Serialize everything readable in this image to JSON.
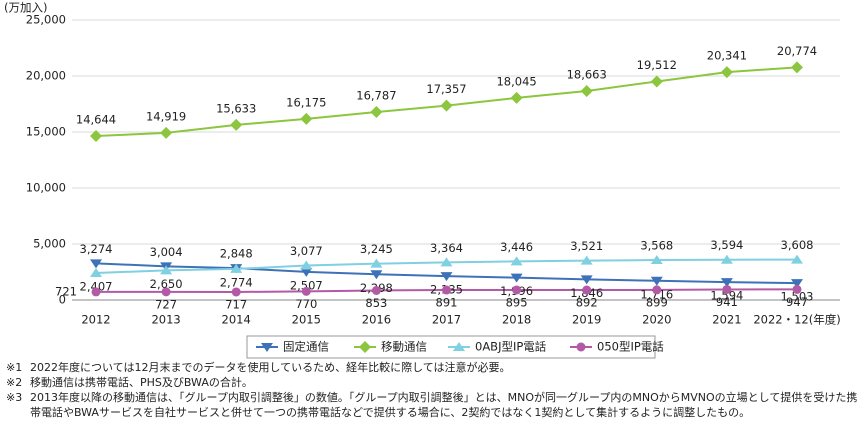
{
  "chart_data": {
    "type": "line",
    "y_unit": "(万加入)",
    "categories": [
      "2012",
      "2013",
      "2014",
      "2015",
      "2016",
      "2017",
      "2018",
      "2019",
      "2020",
      "2021",
      "2022・12(年度)"
    ],
    "ylim": [
      0,
      25000
    ],
    "yticks": [
      0,
      {
        "value": 5000,
        "label": "5,000"
      },
      {
        "value": 10000,
        "label": "10,000"
      },
      {
        "value": 15000,
        "label": "15,000"
      },
      {
        "value": 20000,
        "label": "20,000"
      },
      {
        "value": 25000,
        "label": "25,000"
      }
    ],
    "grid": true,
    "series": [
      {
        "name": "固定通信",
        "color": "#3d72b8",
        "marker": "triangle-down",
        "values": [
          3274,
          3004,
          2848,
          2507,
          2298,
          2135,
          1996,
          1846,
          1716,
          1594,
          1503
        ],
        "value_labels": [
          "3,274",
          "3,004",
          "2,848",
          "2,507",
          "2,298",
          "2,135",
          "1,996",
          "1,846",
          "1,716",
          "1,594",
          "1,503"
        ]
      },
      {
        "name": "移動通信",
        "color": "#8cc63f",
        "marker": "diamond",
        "values": [
          14644,
          14919,
          15633,
          16175,
          16787,
          17357,
          18045,
          18663,
          19512,
          20341,
          20774
        ],
        "value_labels": [
          "14,644",
          "14,919",
          "15,633",
          "16,175",
          "16,787",
          "17,357",
          "18,045",
          "18,663",
          "19,512",
          "20,341",
          "20,774"
        ]
      },
      {
        "name": "0ABJ型IP電話",
        "color": "#7fd0e0",
        "marker": "triangle-up",
        "values": [
          2407,
          2650,
          2774,
          3077,
          3245,
          3364,
          3446,
          3521,
          3568,
          3594,
          3608
        ],
        "value_labels": [
          "2,407",
          "2,650",
          "2,774",
          "3,077",
          "3,245",
          "3,364",
          "3,446",
          "3,521",
          "3,568",
          "3,594",
          "3,608"
        ]
      },
      {
        "name": "050型IP電話",
        "color": "#b35aa6",
        "marker": "circle",
        "values": [
          721,
          727,
          717,
          770,
          853,
          891,
          895,
          892,
          899,
          941,
          947
        ]
      }
    ]
  },
  "notes": [
    {
      "mark": "※1",
      "text": "2022年度については12月末までのデータを使用しているため、経年比較に際しては注意が必要。"
    },
    {
      "mark": "※2",
      "text": "移動通信は携帯電話、PHS及びBWAの合計。"
    },
    {
      "mark": "※3",
      "text": "2013年度以降の移動通信は、「グループ内取引調整後」の数値。「グループ内取引調整後」とは、MNOが同一グループ内のMNOからMVNOの立場として提供を受けた携帯電話やBWAサービスを自社サービスと併せて一つの携帯電話などで提供する場合に、2契約ではなく1契約として集計するように調整したもの。"
    }
  ]
}
